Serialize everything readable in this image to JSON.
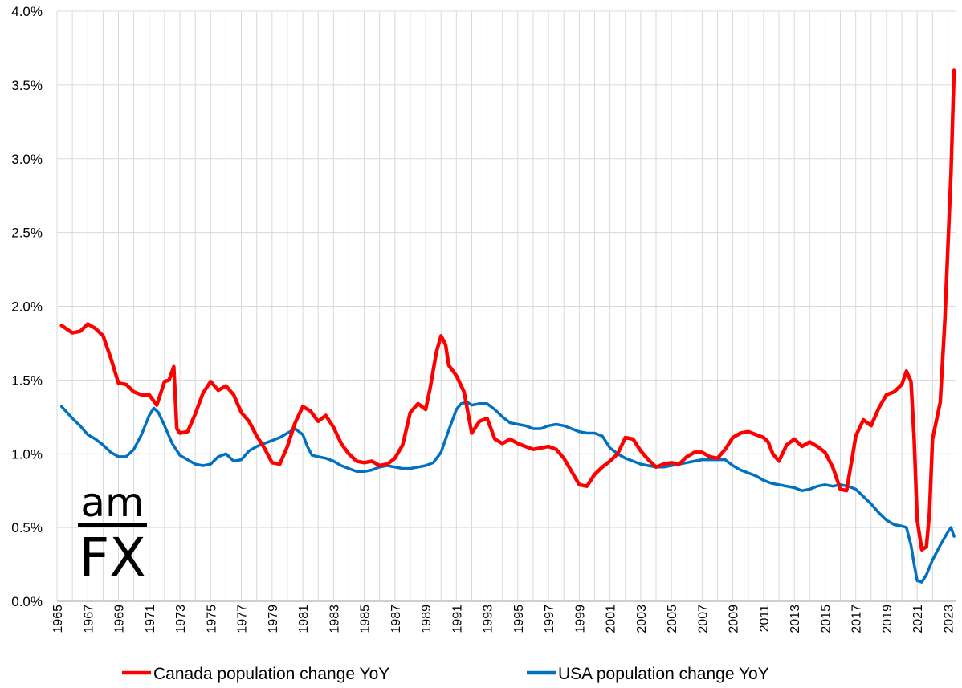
{
  "chart_data": {
    "type": "line",
    "title": "",
    "xlabel": "",
    "ylabel": "",
    "xlim": [
      1965,
      2023.5
    ],
    "ylim": [
      0.0,
      4.0
    ],
    "grid": true,
    "y_ticks": [
      "0.0%",
      "0.5%",
      "1.0%",
      "1.5%",
      "2.0%",
      "2.5%",
      "3.0%",
      "3.5%",
      "4.0%"
    ],
    "x_ticks": [
      "1965",
      "1967",
      "1969",
      "1971",
      "1973",
      "1975",
      "1977",
      "1979",
      "1981",
      "1983",
      "1985",
      "1987",
      "1989",
      "1991",
      "1993",
      "1995",
      "1997",
      "1999",
      "2001",
      "2003",
      "2005",
      "2007",
      "2009",
      "2011",
      "2013",
      "2015",
      "2017",
      "2019",
      "2021",
      "2023"
    ],
    "legend_position": "bottom",
    "series": [
      {
        "name": "Canada population change YoY",
        "color": "#ff0000",
        "points": [
          [
            1965.3,
            1.87
          ],
          [
            1966,
            1.82
          ],
          [
            1966.5,
            1.83
          ],
          [
            1967,
            1.88
          ],
          [
            1967.5,
            1.85
          ],
          [
            1968,
            1.8
          ],
          [
            1968.5,
            1.65
          ],
          [
            1969,
            1.48
          ],
          [
            1969.5,
            1.47
          ],
          [
            1970,
            1.42
          ],
          [
            1970.5,
            1.4
          ],
          [
            1971,
            1.4
          ],
          [
            1971.5,
            1.33
          ],
          [
            1972,
            1.49
          ],
          [
            1972.3,
            1.5
          ],
          [
            1972.6,
            1.59
          ],
          [
            1972.8,
            1.17
          ],
          [
            1973,
            1.14
          ],
          [
            1973.5,
            1.15
          ],
          [
            1974,
            1.27
          ],
          [
            1974.5,
            1.41
          ],
          [
            1975,
            1.49
          ],
          [
            1975.5,
            1.43
          ],
          [
            1976,
            1.46
          ],
          [
            1976.5,
            1.4
          ],
          [
            1977,
            1.28
          ],
          [
            1977.5,
            1.22
          ],
          [
            1978,
            1.12
          ],
          [
            1978.5,
            1.04
          ],
          [
            1979,
            0.94
          ],
          [
            1979.5,
            0.93
          ],
          [
            1980,
            1.05
          ],
          [
            1980.5,
            1.21
          ],
          [
            1981,
            1.32
          ],
          [
            1981.5,
            1.29
          ],
          [
            1982,
            1.22
          ],
          [
            1982.5,
            1.26
          ],
          [
            1983,
            1.18
          ],
          [
            1983.5,
            1.07
          ],
          [
            1984,
            1.0
          ],
          [
            1984.5,
            0.95
          ],
          [
            1985,
            0.94
          ],
          [
            1985.5,
            0.95
          ],
          [
            1986,
            0.92
          ],
          [
            1986.5,
            0.93
          ],
          [
            1987,
            0.97
          ],
          [
            1987.5,
            1.06
          ],
          [
            1988,
            1.28
          ],
          [
            1988.5,
            1.34
          ],
          [
            1989,
            1.3
          ],
          [
            1989.3,
            1.45
          ],
          [
            1989.7,
            1.69
          ],
          [
            1990,
            1.8
          ],
          [
            1990.3,
            1.74
          ],
          [
            1990.5,
            1.6
          ],
          [
            1991,
            1.53
          ],
          [
            1991.5,
            1.42
          ],
          [
            1992,
            1.14
          ],
          [
            1992.5,
            1.22
          ],
          [
            1993,
            1.24
          ],
          [
            1993.5,
            1.1
          ],
          [
            1994,
            1.07
          ],
          [
            1994.5,
            1.1
          ],
          [
            1995,
            1.07
          ],
          [
            1995.5,
            1.05
          ],
          [
            1996,
            1.03
          ],
          [
            1996.5,
            1.04
          ],
          [
            1997,
            1.05
          ],
          [
            1997.5,
            1.03
          ],
          [
            1998,
            0.97
          ],
          [
            1998.5,
            0.88
          ],
          [
            1999,
            0.79
          ],
          [
            1999.5,
            0.78
          ],
          [
            2000,
            0.86
          ],
          [
            2000.5,
            0.91
          ],
          [
            2001,
            0.95
          ],
          [
            2001.5,
            1.0
          ],
          [
            2002,
            1.11
          ],
          [
            2002.5,
            1.1
          ],
          [
            2003,
            1.02
          ],
          [
            2003.5,
            0.96
          ],
          [
            2004,
            0.91
          ],
          [
            2004.5,
            0.93
          ],
          [
            2005,
            0.94
          ],
          [
            2005.5,
            0.93
          ],
          [
            2006,
            0.98
          ],
          [
            2006.5,
            1.01
          ],
          [
            2007,
            1.01
          ],
          [
            2007.5,
            0.98
          ],
          [
            2008,
            0.97
          ],
          [
            2008.5,
            1.03
          ],
          [
            2009,
            1.11
          ],
          [
            2009.5,
            1.14
          ],
          [
            2010,
            1.15
          ],
          [
            2010.5,
            1.13
          ],
          [
            2011,
            1.11
          ],
          [
            2011.3,
            1.08
          ],
          [
            2011.6,
            1.0
          ],
          [
            2012,
            0.95
          ],
          [
            2012.5,
            1.06
          ],
          [
            2013,
            1.1
          ],
          [
            2013.5,
            1.05
          ],
          [
            2014,
            1.08
          ],
          [
            2014.5,
            1.05
          ],
          [
            2015,
            1.01
          ],
          [
            2015.5,
            0.91
          ],
          [
            2016,
            0.76
          ],
          [
            2016.4,
            0.75
          ],
          [
            2016.8,
            0.99
          ],
          [
            2017,
            1.12
          ],
          [
            2017.5,
            1.23
          ],
          [
            2018,
            1.19
          ],
          [
            2018.5,
            1.31
          ],
          [
            2019,
            1.4
          ],
          [
            2019.5,
            1.42
          ],
          [
            2020,
            1.47
          ],
          [
            2020.3,
            1.56
          ],
          [
            2020.6,
            1.49
          ],
          [
            2020.8,
            1.1
          ],
          [
            2021,
            0.55
          ],
          [
            2021.3,
            0.35
          ],
          [
            2021.6,
            0.37
          ],
          [
            2021.8,
            0.6
          ],
          [
            2022,
            1.1
          ],
          [
            2022.5,
            1.35
          ],
          [
            2022.8,
            1.9
          ],
          [
            2023,
            2.4
          ],
          [
            2023.2,
            2.9
          ],
          [
            2023.4,
            3.6
          ]
        ]
      },
      {
        "name": "USA population change YoY",
        "color": "#0070c0",
        "points": [
          [
            1965.3,
            1.32
          ],
          [
            1966,
            1.24
          ],
          [
            1966.5,
            1.19
          ],
          [
            1967,
            1.13
          ],
          [
            1967.5,
            1.1
          ],
          [
            1968,
            1.06
          ],
          [
            1968.5,
            1.01
          ],
          [
            1969,
            0.98
          ],
          [
            1969.5,
            0.98
          ],
          [
            1970,
            1.03
          ],
          [
            1970.5,
            1.13
          ],
          [
            1971,
            1.26
          ],
          [
            1971.3,
            1.31
          ],
          [
            1971.6,
            1.28
          ],
          [
            1972,
            1.19
          ],
          [
            1972.5,
            1.07
          ],
          [
            1973,
            0.99
          ],
          [
            1973.5,
            0.96
          ],
          [
            1974,
            0.93
          ],
          [
            1974.5,
            0.92
          ],
          [
            1975,
            0.93
          ],
          [
            1975.5,
            0.98
          ],
          [
            1976,
            1.0
          ],
          [
            1976.5,
            0.95
          ],
          [
            1977,
            0.96
          ],
          [
            1977.5,
            1.02
          ],
          [
            1978,
            1.05
          ],
          [
            1978.5,
            1.07
          ],
          [
            1979,
            1.09
          ],
          [
            1979.5,
            1.11
          ],
          [
            1980,
            1.14
          ],
          [
            1980.5,
            1.17
          ],
          [
            1981,
            1.13
          ],
          [
            1981.3,
            1.05
          ],
          [
            1981.6,
            0.99
          ],
          [
            1982,
            0.98
          ],
          [
            1982.5,
            0.97
          ],
          [
            1983,
            0.95
          ],
          [
            1983.5,
            0.92
          ],
          [
            1984,
            0.9
          ],
          [
            1984.5,
            0.88
          ],
          [
            1985,
            0.88
          ],
          [
            1985.5,
            0.89
          ],
          [
            1986,
            0.91
          ],
          [
            1986.5,
            0.92
          ],
          [
            1987,
            0.91
          ],
          [
            1987.5,
            0.9
          ],
          [
            1988,
            0.9
          ],
          [
            1988.5,
            0.91
          ],
          [
            1989,
            0.92
          ],
          [
            1989.5,
            0.94
          ],
          [
            1990,
            1.01
          ],
          [
            1990.5,
            1.16
          ],
          [
            1991,
            1.3
          ],
          [
            1991.3,
            1.34
          ],
          [
            1991.7,
            1.35
          ],
          [
            1992,
            1.33
          ],
          [
            1992.5,
            1.34
          ],
          [
            1993,
            1.34
          ],
          [
            1993.5,
            1.3
          ],
          [
            1994,
            1.25
          ],
          [
            1994.5,
            1.21
          ],
          [
            1995,
            1.2
          ],
          [
            1995.5,
            1.19
          ],
          [
            1996,
            1.17
          ],
          [
            1996.5,
            1.17
          ],
          [
            1997,
            1.19
          ],
          [
            1997.5,
            1.2
          ],
          [
            1998,
            1.19
          ],
          [
            1998.5,
            1.17
          ],
          [
            1999,
            1.15
          ],
          [
            1999.5,
            1.14
          ],
          [
            2000,
            1.14
          ],
          [
            2000.5,
            1.12
          ],
          [
            2001,
            1.04
          ],
          [
            2001.5,
            1.0
          ],
          [
            2002,
            0.97
          ],
          [
            2002.5,
            0.95
          ],
          [
            2003,
            0.93
          ],
          [
            2003.5,
            0.92
          ],
          [
            2004,
            0.91
          ],
          [
            2004.5,
            0.91
          ],
          [
            2005,
            0.92
          ],
          [
            2005.5,
            0.93
          ],
          [
            2006,
            0.94
          ],
          [
            2006.5,
            0.95
          ],
          [
            2007,
            0.96
          ],
          [
            2007.5,
            0.96
          ],
          [
            2008,
            0.96
          ],
          [
            2008.5,
            0.96
          ],
          [
            2009,
            0.92
          ],
          [
            2009.5,
            0.89
          ],
          [
            2010,
            0.87
          ],
          [
            2010.5,
            0.85
          ],
          [
            2011,
            0.82
          ],
          [
            2011.5,
            0.8
          ],
          [
            2012,
            0.79
          ],
          [
            2012.5,
            0.78
          ],
          [
            2013,
            0.77
          ],
          [
            2013.5,
            0.75
          ],
          [
            2014,
            0.76
          ],
          [
            2014.5,
            0.78
          ],
          [
            2015,
            0.79
          ],
          [
            2015.5,
            0.78
          ],
          [
            2016,
            0.79
          ],
          [
            2016.5,
            0.78
          ],
          [
            2017,
            0.76
          ],
          [
            2017.5,
            0.71
          ],
          [
            2018,
            0.66
          ],
          [
            2018.5,
            0.6
          ],
          [
            2019,
            0.55
          ],
          [
            2019.5,
            0.52
          ],
          [
            2020,
            0.51
          ],
          [
            2020.3,
            0.5
          ],
          [
            2020.6,
            0.38
          ],
          [
            2020.8,
            0.25
          ],
          [
            2021,
            0.14
          ],
          [
            2021.3,
            0.13
          ],
          [
            2021.6,
            0.18
          ],
          [
            2022,
            0.28
          ],
          [
            2022.5,
            0.38
          ],
          [
            2023,
            0.47
          ],
          [
            2023.2,
            0.5
          ],
          [
            2023.4,
            0.44
          ]
        ]
      }
    ]
  },
  "logo": {
    "top": "am",
    "bottom": "FX"
  },
  "colors": {
    "grid": "#d9d9d9",
    "axis": "#bfbfbf",
    "canada": "#ff0000",
    "usa": "#0070c0"
  }
}
